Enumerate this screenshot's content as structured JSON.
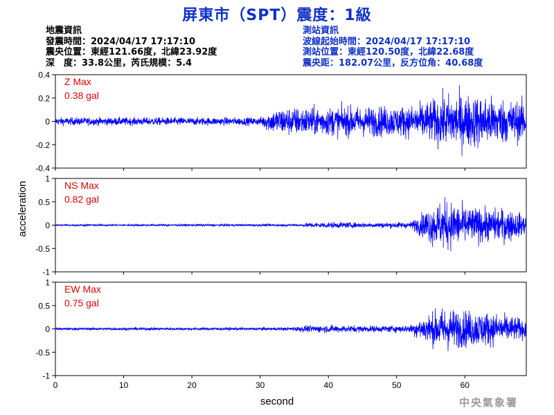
{
  "header": {
    "title": "屏東市（SPT）震度：1級"
  },
  "quake_info": {
    "heading": "地震資訊",
    "time": "發震時間：2024/04/17 17:17:10",
    "epicenter": "震央位置：東經121.66度，北緯23.92度",
    "depth_magnitude": "深　度：33.8公里，芮氏規模：5.4"
  },
  "station_info": {
    "heading": "測站資訊",
    "wave_start": "波線起始時間：2024/04/17 17:17:10",
    "location": "測站位置：東經120.50度，北緯22.68度",
    "distance": "震央距：182.07公里，反方位角：40.68度"
  },
  "footer": {
    "agency": "中央氣象署"
  },
  "colors": {
    "trace": "#0000ff",
    "title": "#1030c8",
    "max_label": "#e00000",
    "axis": "#000000"
  },
  "chart_data": {
    "type": "line",
    "xlabel": "second",
    "ylabel": "acceleration",
    "xlim": [
      0,
      69
    ],
    "x_ticks": [
      "0",
      "10",
      "20",
      "30",
      "40",
      "50",
      "60"
    ],
    "grid": false,
    "panels": [
      {
        "name": "Z",
        "max_label": "Z Max",
        "max_value": "0.38 gal",
        "ylim": [
          -0.4,
          0.4
        ],
        "y_ticks": [
          "0.4",
          "0.2",
          "0",
          "-0.2",
          "-0.4"
        ],
        "envelope": [
          [
            0,
            0.05
          ],
          [
            30,
            0.05
          ],
          [
            31,
            0.12
          ],
          [
            33,
            0.18
          ],
          [
            38,
            0.18
          ],
          [
            45,
            0.19
          ],
          [
            52,
            0.2
          ],
          [
            54,
            0.24
          ],
          [
            56,
            0.3
          ],
          [
            58,
            0.35
          ],
          [
            63,
            0.33
          ],
          [
            66,
            0.28
          ],
          [
            69,
            0.25
          ]
        ]
      },
      {
        "name": "NS",
        "max_label": "NS Max",
        "max_value": "0.82 gal",
        "ylim": [
          -1,
          1
        ],
        "y_ticks": [
          "1",
          "0.5",
          "0",
          "-0.5",
          "-1"
        ],
        "envelope": [
          [
            0,
            0.03
          ],
          [
            36,
            0.04
          ],
          [
            37,
            0.08
          ],
          [
            40,
            0.1
          ],
          [
            45,
            0.08
          ],
          [
            52,
            0.1
          ],
          [
            53,
            0.25
          ],
          [
            55,
            0.6
          ],
          [
            57,
            0.8
          ],
          [
            60,
            0.6
          ],
          [
            64,
            0.5
          ],
          [
            66,
            0.55
          ],
          [
            69,
            0.3
          ]
        ]
      },
      {
        "name": "EW",
        "max_label": "EW Max",
        "max_value": "0.75 gal",
        "ylim": [
          -1,
          1
        ],
        "y_ticks": [
          "1",
          "0.5",
          "0",
          "-0.5",
          "-1"
        ],
        "envelope": [
          [
            0,
            0.04
          ],
          [
            34,
            0.05
          ],
          [
            36,
            0.1
          ],
          [
            40,
            0.12
          ],
          [
            46,
            0.1
          ],
          [
            52,
            0.12
          ],
          [
            53,
            0.3
          ],
          [
            55,
            0.5
          ],
          [
            57,
            0.7
          ],
          [
            59,
            0.6
          ],
          [
            63,
            0.55
          ],
          [
            66,
            0.45
          ],
          [
            69,
            0.3
          ]
        ]
      }
    ]
  }
}
